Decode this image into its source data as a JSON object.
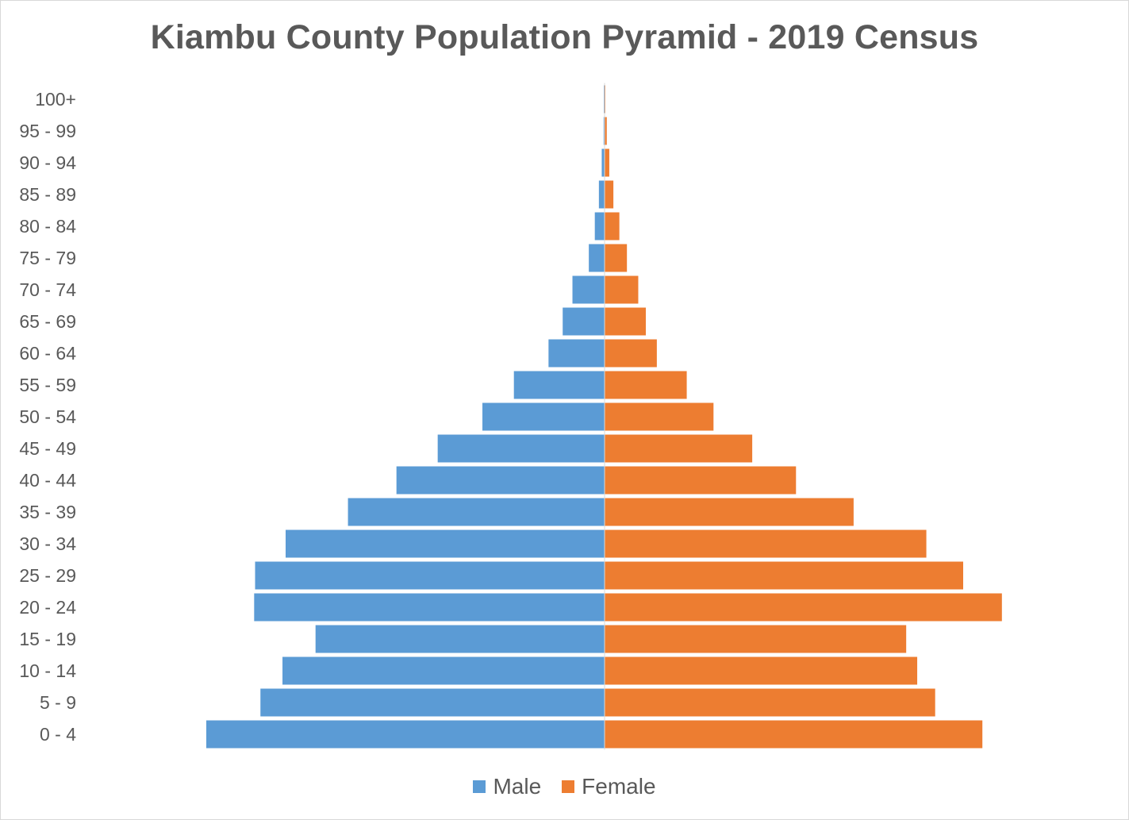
{
  "chart_data": {
    "type": "bar",
    "orientation": "horizontal-diverging",
    "title": "Kiambu County Population Pyramid - 2019 Census",
    "categories": [
      "0 - 4",
      "5 - 9",
      "10 - 14",
      "15 - 19",
      "20 - 24",
      "25 - 29",
      "30 - 34",
      "35 - 39",
      "40 - 44",
      "45 - 49",
      "50 - 54",
      "55 - 59",
      "60 - 64",
      "65 - 69",
      "70 - 74",
      "75 - 79",
      "80 - 84",
      "85 - 89",
      "90 - 94",
      "95 - 99",
      "100+"
    ],
    "series": [
      {
        "name": "Male",
        "color": "#5b9bd5",
        "values": [
          126500,
          109300,
          102300,
          91800,
          111300,
          111000,
          101300,
          81500,
          66100,
          53000,
          38800,
          28800,
          17800,
          13300,
          10200,
          5000,
          3100,
          1800,
          900,
          300,
          100
        ]
      },
      {
        "name": "Female",
        "color": "#ed7d31",
        "values": [
          120000,
          105000,
          99300,
          95800,
          126200,
          113900,
          102200,
          79100,
          60800,
          46900,
          34600,
          26100,
          16600,
          13100,
          10700,
          7100,
          4700,
          2800,
          1500,
          700,
          200
        ]
      }
    ],
    "xlim": [
      -130000,
      130000
    ],
    "legend_position": "bottom",
    "grid": false
  }
}
